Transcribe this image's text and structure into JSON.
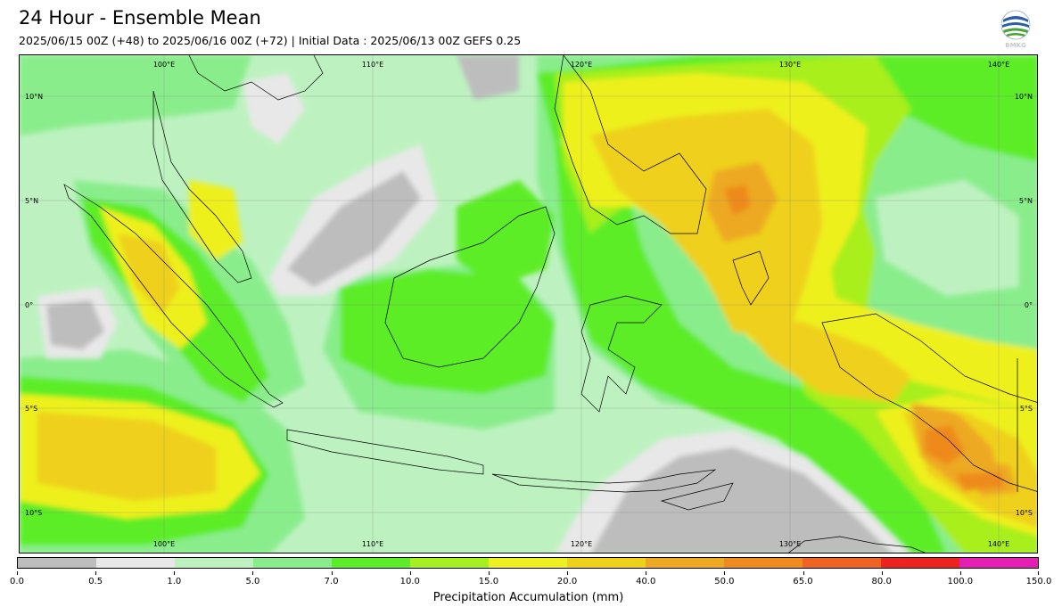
{
  "header": {
    "title": "24 Hour - Ensemble Mean",
    "subtitle": "2025/06/15 00Z (+48) to 2025/06/16 00Z (+72) | Initial Data : 2025/06/13 00Z GEFS 0.25",
    "logo_text": "BMKG"
  },
  "map": {
    "region": "Indonesia",
    "lon_labels": [
      "100°E",
      "110°E",
      "120°E",
      "130°E",
      "140°E"
    ],
    "lat_labels": [
      "10°N",
      "5°N",
      "0°",
      "5°S",
      "10°S"
    ]
  },
  "legend": {
    "label": "Precipitation Accumulation (mm)",
    "ticks": [
      "0.0",
      "0.5",
      "1.0",
      "5.0",
      "7.0",
      "10.0",
      "15.0",
      "20.0",
      "40.0",
      "50.0",
      "65.0",
      "80.0",
      "100.0",
      "150.0"
    ],
    "colors": [
      "#bdbdbd",
      "#e8e8e8",
      "#bdf2c0",
      "#8aed8c",
      "#5ded28",
      "#a8ef1f",
      "#eef01f",
      "#efd01b",
      "#eda922",
      "#ee8a1e",
      "#ef6322",
      "#ef2222",
      "#e51fb3"
    ]
  }
}
